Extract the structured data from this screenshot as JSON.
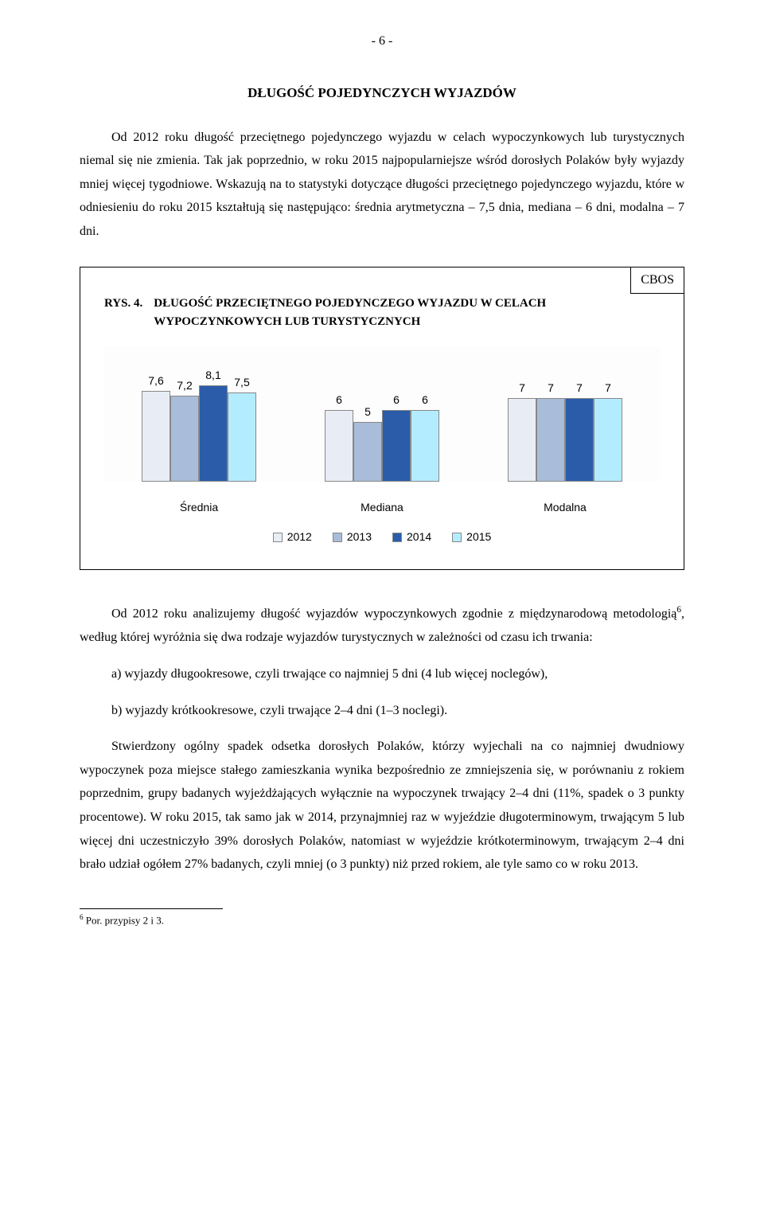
{
  "page_number": "- 6 -",
  "section_heading": "DŁUGOŚĆ POJEDYNCZYCH WYJAZDÓW",
  "para1": "Od 2012 roku długość przeciętnego pojedynczego wyjazdu w celach wypoczynkowych lub turystycznych niemal się nie zmienia. Tak jak poprzednio, w roku 2015 najpopularniejsze wśród dorosłych Polaków były wyjazdy mniej więcej tygodniowe. Wskazują na to statystyki dotyczące długości przeciętnego pojedynczego wyjazdu, które w odniesieniu do roku 2015 kształtują się następująco: średnia arytmetyczna – 7,5 dnia, mediana – 6 dni, modalna – 7 dni.",
  "para2_a": "Od 2012 roku analizujemy długość wyjazdów wypoczynkowych zgodnie z międzynarodową metodologią",
  "para2_sup": "6",
  "para2_b": ", według której wyróżnia się dwa rodzaje wyjazdów turystycznych w zależności od czasu ich trwania:",
  "para3": "a) wyjazdy długookresowe, czyli trwające co najmniej 5 dni (4 lub więcej noclegów),",
  "para4": "b) wyjazdy krótkookresowe, czyli trwające 2–4 dni (1–3 noclegi).",
  "para5": "Stwierdzony ogólny spadek odsetka dorosłych Polaków, którzy wyjechali na co najmniej dwudniowy wypoczynek poza miejsce stałego zamieszkania wynika bezpośrednio ze zmniejszenia się, w porównaniu z rokiem poprzednim, grupy badanych wyjeżdżających wyłącznie na wypoczynek trwający 2–4 dni (11%, spadek o 3 punkty procentowe). W roku 2015, tak samo jak w 2014, przynajmniej raz w wyjeździe długoterminowym, trwającym 5 lub więcej dni uczestniczyło 39% dorosłych Polaków, natomiast w wyjeździe krótkoterminowym, trwającym 2–4 dni brało udział ogółem 27% badanych, czyli mniej (o 3 punkty) niż przed rokiem, ale tyle samo co w roku 2013.",
  "footnote_marker": "6",
  "footnote_text": " Por. przypisy 2 i 3.",
  "chart": {
    "badge": "CBOS",
    "fig_num": "RYS. 4.",
    "fig_title": "DŁUGOŚĆ PRZECIĘTNEGO POJEDYNCZEGO WYJAZDU W CELACH WYPOCZYNKOWYCH LUB TURYSTYCZNYCH",
    "type": "bar",
    "y_max": 10,
    "series": [
      {
        "label": "2012",
        "color": "#e8edf5"
      },
      {
        "label": "2013",
        "color": "#a9bcd9"
      },
      {
        "label": "2014",
        "color": "#2a5caa"
      },
      {
        "label": "2015",
        "color": "#b4ecff"
      }
    ],
    "groups": [
      {
        "label": "Średnia",
        "values": [
          "7,6",
          "7,2",
          "8,1",
          "7,5"
        ],
        "num": [
          7.6,
          7.2,
          8.1,
          7.5
        ]
      },
      {
        "label": "Mediana",
        "values": [
          "6",
          "5",
          "6",
          "6"
        ],
        "num": [
          6,
          5,
          6,
          6
        ]
      },
      {
        "label": "Modalna",
        "values": [
          "7",
          "7",
          "7",
          "7"
        ],
        "num": [
          7,
          7,
          7,
          7
        ]
      }
    ]
  }
}
